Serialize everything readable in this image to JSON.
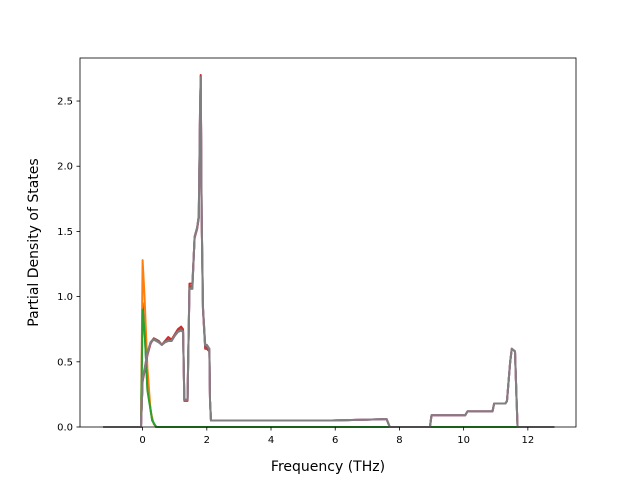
{
  "chart_data": {
    "type": "line",
    "title": "",
    "xlabel": "Frequency (THz)",
    "ylabel": "Partial Density of States",
    "xlim": [
      -1.95,
      13.5
    ],
    "ylim": [
      0.0,
      2.83
    ],
    "xticks": [
      0,
      2,
      4,
      6,
      8,
      10,
      12
    ],
    "xtick_labels": [
      "0",
      "2",
      "4",
      "6",
      "8",
      "10",
      "12"
    ],
    "yticks": [
      0.0,
      0.5,
      1.0,
      1.5,
      2.0,
      2.5
    ],
    "ytick_labels": [
      "0.0",
      "0.5",
      "1.0",
      "1.5",
      "2.0",
      "2.5"
    ],
    "grid": false,
    "legend": "none",
    "series": [
      {
        "color": "#1f77b4",
        "x": [
          -1.2,
          -0.05,
          0.0,
          0.06,
          0.15,
          0.3,
          0.42,
          0.55,
          12.8
        ],
        "y": [
          0.0,
          0.0,
          0.95,
          0.75,
          0.3,
          0.05,
          0.0,
          0.0,
          0.0
        ]
      },
      {
        "color": "#ff7f0e",
        "x": [
          -1.2,
          -0.05,
          0.0,
          0.06,
          0.15,
          0.25,
          0.35,
          0.45,
          12.8
        ],
        "y": [
          0.0,
          0.0,
          1.28,
          1.0,
          0.45,
          0.12,
          0.02,
          0.0,
          0.0
        ]
      },
      {
        "color": "#2ca02c",
        "x": [
          -1.2,
          -0.05,
          0.0,
          0.07,
          0.15,
          0.3,
          0.42,
          0.55,
          12.8
        ],
        "y": [
          0.0,
          0.0,
          0.9,
          0.7,
          0.28,
          0.05,
          0.0,
          0.0,
          0.0
        ]
      },
      {
        "color": "#d62728",
        "x": [
          -1.2,
          -0.05,
          0.0,
          0.08,
          0.15,
          0.25,
          0.35,
          0.5,
          0.6,
          0.7,
          0.8,
          0.9,
          1.0,
          1.1,
          1.2,
          1.26,
          1.3,
          1.4,
          1.42,
          1.46,
          1.55,
          1.62,
          1.7,
          1.75,
          1.79,
          1.81,
          1.84,
          1.88,
          1.95,
          2.0,
          2.08,
          2.1,
          2.13,
          3.0,
          5.9,
          7.55,
          7.6,
          7.7,
          8.95,
          9.0,
          10.05,
          10.12,
          10.9,
          10.95,
          11.3,
          11.35,
          11.45,
          11.5,
          11.6,
          11.65,
          11.68,
          12.8
        ],
        "y": [
          0.0,
          0.0,
          0.35,
          0.45,
          0.55,
          0.64,
          0.68,
          0.66,
          0.63,
          0.66,
          0.69,
          0.67,
          0.71,
          0.75,
          0.77,
          0.75,
          0.2,
          0.2,
          0.5,
          1.1,
          1.1,
          1.45,
          1.52,
          1.6,
          2.4,
          2.7,
          1.6,
          0.9,
          0.6,
          0.6,
          0.58,
          0.2,
          0.05,
          0.05,
          0.05,
          0.06,
          0.06,
          0.0,
          0.0,
          0.09,
          0.09,
          0.12,
          0.12,
          0.18,
          0.18,
          0.2,
          0.5,
          0.6,
          0.58,
          0.2,
          0.0,
          0.0
        ]
      },
      {
        "color": "#9467bd",
        "x": [
          -1.2,
          -0.05,
          0.0,
          0.08,
          0.15,
          0.25,
          0.35,
          0.5,
          0.6,
          0.7,
          0.8,
          0.9,
          1.0,
          1.1,
          1.2,
          1.26,
          1.3,
          1.4,
          1.42,
          1.46,
          1.55,
          1.62,
          1.7,
          1.75,
          1.79,
          1.81,
          1.84,
          1.88,
          1.95,
          2.0,
          2.08,
          2.1,
          2.13,
          3.0,
          5.9,
          7.55,
          7.6,
          7.7,
          8.95,
          9.0,
          10.05,
          10.12,
          10.9,
          10.95,
          11.3,
          11.35,
          11.45,
          11.5,
          11.6,
          11.65,
          11.68,
          12.8
        ],
        "y": [
          0.0,
          0.0,
          0.36,
          0.46,
          0.56,
          0.65,
          0.67,
          0.65,
          0.63,
          0.65,
          0.66,
          0.66,
          0.7,
          0.73,
          0.74,
          0.73,
          0.21,
          0.21,
          0.52,
          1.07,
          1.07,
          1.46,
          1.53,
          1.62,
          2.45,
          2.68,
          1.62,
          0.92,
          0.62,
          0.62,
          0.59,
          0.2,
          0.05,
          0.05,
          0.05,
          0.06,
          0.06,
          0.0,
          0.0,
          0.09,
          0.09,
          0.12,
          0.12,
          0.18,
          0.18,
          0.2,
          0.5,
          0.6,
          0.58,
          0.2,
          0.0,
          0.0
        ]
      },
      {
        "color": "#8c564b",
        "x": [
          -1.2,
          -0.05,
          0.0,
          0.08,
          0.15,
          0.25,
          0.35,
          0.5,
          0.6,
          0.7,
          0.8,
          0.9,
          1.0,
          1.1,
          1.2,
          1.26,
          1.3,
          1.4,
          1.42,
          1.46,
          1.55,
          1.62,
          1.7,
          1.75,
          1.79,
          1.81,
          1.84,
          1.88,
          1.95,
          2.0,
          2.08,
          2.1,
          2.13,
          3.0,
          5.9,
          7.55,
          7.6,
          7.7,
          8.95,
          9.0,
          10.05,
          10.12,
          10.9,
          10.95,
          11.3,
          11.35,
          11.45,
          11.5,
          11.6,
          11.65,
          11.68,
          12.8
        ],
        "y": [
          0.0,
          0.0,
          0.36,
          0.46,
          0.56,
          0.65,
          0.68,
          0.66,
          0.63,
          0.66,
          0.67,
          0.66,
          0.7,
          0.74,
          0.75,
          0.74,
          0.21,
          0.21,
          0.51,
          1.08,
          1.08,
          1.45,
          1.53,
          1.61,
          2.42,
          2.69,
          1.61,
          0.91,
          0.61,
          0.61,
          0.59,
          0.2,
          0.05,
          0.05,
          0.05,
          0.06,
          0.06,
          0.0,
          0.0,
          0.09,
          0.09,
          0.12,
          0.12,
          0.18,
          0.18,
          0.2,
          0.5,
          0.6,
          0.58,
          0.2,
          0.0,
          0.0
        ]
      },
      {
        "color": "#e377c2",
        "x": [
          -1.2,
          -0.05,
          0.0,
          0.08,
          0.15,
          0.25,
          0.35,
          0.5,
          0.6,
          0.7,
          0.8,
          0.9,
          1.0,
          1.1,
          1.2,
          1.26,
          1.3,
          1.4,
          1.42,
          1.46,
          1.55,
          1.62,
          1.7,
          1.75,
          1.79,
          1.81,
          1.84,
          1.88,
          1.95,
          2.0,
          2.08,
          2.1,
          2.13,
          3.0,
          5.9,
          7.55,
          7.6,
          7.7,
          8.95,
          9.0,
          10.05,
          10.12,
          10.9,
          10.95,
          11.3,
          11.35,
          11.45,
          11.5,
          11.6,
          11.65,
          11.68,
          12.8
        ],
        "y": [
          0.0,
          0.0,
          0.37,
          0.47,
          0.57,
          0.65,
          0.67,
          0.65,
          0.63,
          0.65,
          0.66,
          0.66,
          0.7,
          0.73,
          0.74,
          0.73,
          0.21,
          0.21,
          0.52,
          1.06,
          1.06,
          1.46,
          1.53,
          1.62,
          2.46,
          2.68,
          1.62,
          0.92,
          0.63,
          0.63,
          0.6,
          0.2,
          0.05,
          0.05,
          0.05,
          0.06,
          0.06,
          0.0,
          0.0,
          0.09,
          0.09,
          0.12,
          0.12,
          0.18,
          0.18,
          0.2,
          0.5,
          0.6,
          0.58,
          0.2,
          0.0,
          0.0
        ]
      },
      {
        "color": "#7f7f7f",
        "x": [
          -1.2,
          -0.05,
          0.0,
          0.08,
          0.15,
          0.25,
          0.35,
          0.5,
          0.6,
          0.7,
          0.8,
          0.9,
          1.0,
          1.1,
          1.2,
          1.26,
          1.3,
          1.4,
          1.42,
          1.46,
          1.55,
          1.62,
          1.7,
          1.75,
          1.79,
          1.81,
          1.84,
          1.88,
          1.95,
          2.0,
          2.08,
          2.1,
          2.13,
          3.0,
          5.9,
          7.55,
          7.6,
          7.7,
          8.95,
          9.0,
          10.05,
          10.12,
          10.9,
          10.95,
          11.3,
          11.35,
          11.45,
          11.5,
          11.6,
          11.65,
          11.68,
          12.8
        ],
        "y": [
          0.0,
          0.0,
          0.37,
          0.47,
          0.57,
          0.65,
          0.67,
          0.65,
          0.63,
          0.65,
          0.66,
          0.66,
          0.7,
          0.73,
          0.74,
          0.73,
          0.21,
          0.21,
          0.52,
          1.06,
          1.06,
          1.46,
          1.53,
          1.62,
          2.46,
          2.68,
          1.62,
          0.92,
          0.63,
          0.63,
          0.6,
          0.2,
          0.05,
          0.05,
          0.05,
          0.06,
          0.06,
          0.0,
          0.0,
          0.09,
          0.09,
          0.12,
          0.12,
          0.18,
          0.18,
          0.2,
          0.5,
          0.6,
          0.58,
          0.2,
          0.0,
          0.0
        ]
      }
    ]
  }
}
